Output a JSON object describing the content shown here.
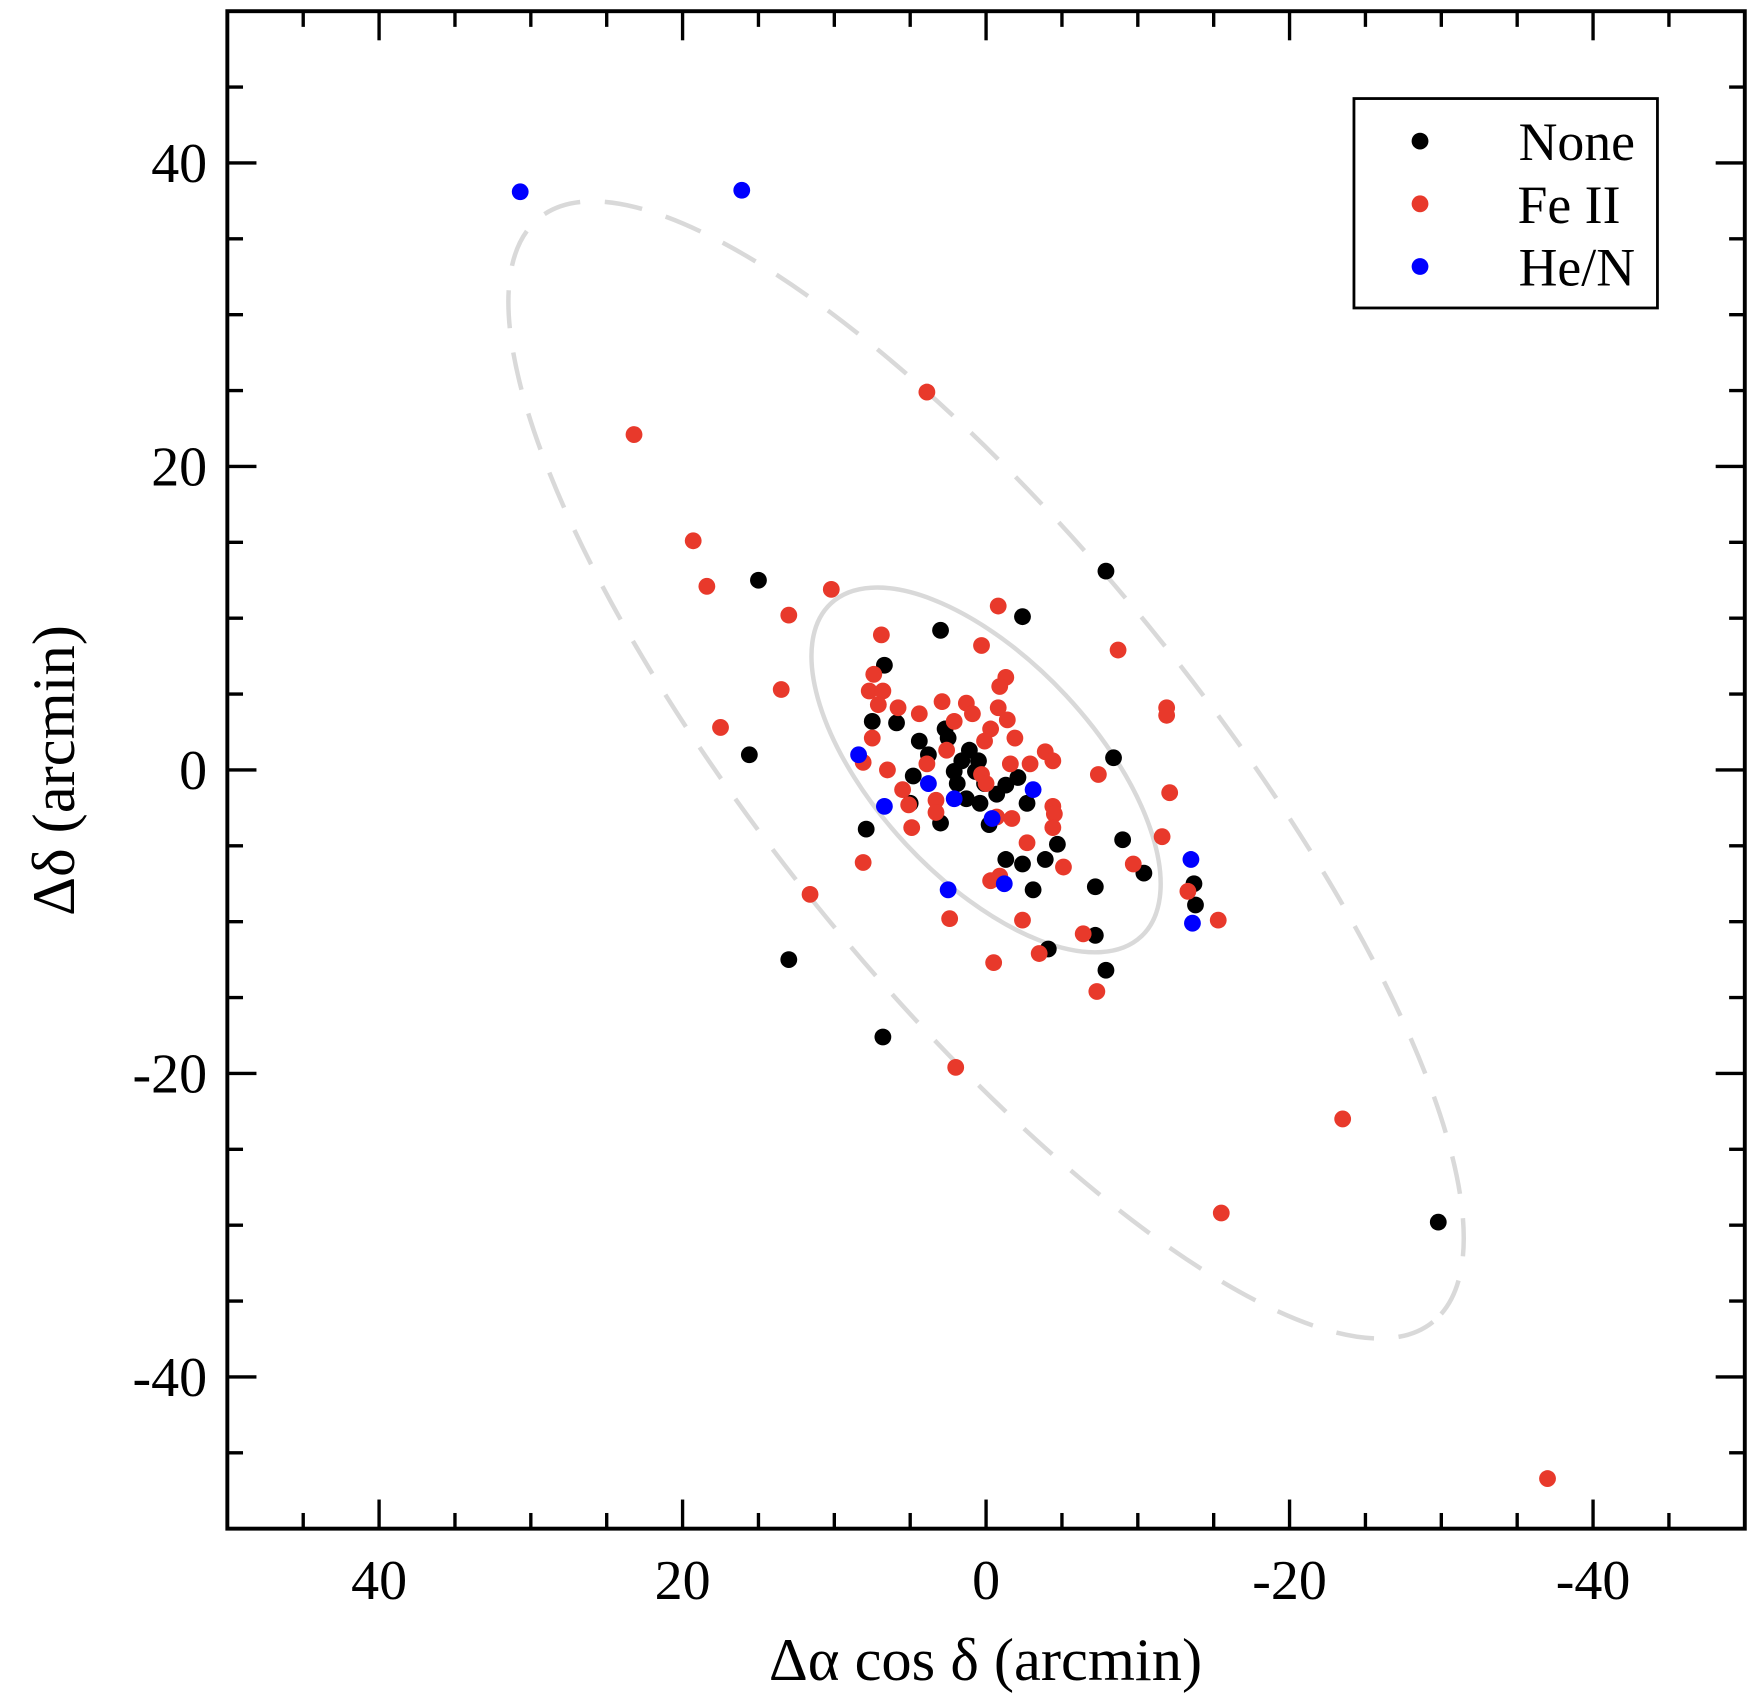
{
  "chart_data": {
    "type": "scatter",
    "title": "",
    "xlabel": "Δα cos δ  (arcmin)",
    "ylabel": "Δδ  (arcmin)",
    "xlim": [
      50,
      -50
    ],
    "ylim": [
      -50,
      50
    ],
    "x_inverted": true,
    "grid": false,
    "xticks": [
      40,
      20,
      0,
      -20,
      -40
    ],
    "xtick_labels": [
      "40",
      "20",
      "0",
      "-20",
      "-40"
    ],
    "yticks": [
      40,
      20,
      0,
      -20,
      -40
    ],
    "ytick_labels": [
      "40",
      "20",
      "0",
      "-20",
      "-40"
    ],
    "minor_tick_step": 5,
    "legend": {
      "placement": "top-right",
      "entries": [
        "None",
        "Fe II",
        "He/N"
      ]
    },
    "ellipses": [
      {
        "name": "outer",
        "style": "dashed",
        "color": "#d9d9d9",
        "center": [
          0,
          0
        ],
        "semi_major": 46.8,
        "semi_minor": 14.3,
        "angle_deg": 51
      },
      {
        "name": "inner",
        "style": "solid",
        "color": "#d9d9d9",
        "center": [
          0,
          0
        ],
        "semi_major": 15.0,
        "semi_minor": 7.2,
        "angle_deg": 47
      }
    ],
    "series": [
      {
        "name": "None",
        "color": "#000000",
        "points": [
          [
            15.0,
            12.5
          ],
          [
            -7.9,
            13.1
          ],
          [
            -2.4,
            10.1
          ],
          [
            3.0,
            9.2
          ],
          [
            6.7,
            6.9
          ],
          [
            7.5,
            3.2
          ],
          [
            5.9,
            3.1
          ],
          [
            15.6,
            1.0
          ],
          [
            -8.4,
            0.8
          ],
          [
            4.4,
            1.9
          ],
          [
            2.7,
            2.7
          ],
          [
            3.8,
            1.0
          ],
          [
            2.1,
            -0.1
          ],
          [
            1.3,
            -1.9
          ],
          [
            0.4,
            -2.2
          ],
          [
            -0.2,
            -3.6
          ],
          [
            3.0,
            -3.5
          ],
          [
            5.0,
            -2.2
          ],
          [
            4.8,
            -0.4
          ],
          [
            7.9,
            -3.9
          ],
          [
            -1.3,
            -1.0
          ],
          [
            -2.1,
            -0.5
          ],
          [
            -2.7,
            -2.2
          ],
          [
            -1.3,
            -5.9
          ],
          [
            -2.4,
            -6.2
          ],
          [
            -3.9,
            -5.9
          ],
          [
            -4.7,
            -4.9
          ],
          [
            -3.1,
            -7.9
          ],
          [
            -7.2,
            -7.7
          ],
          [
            -7.2,
            -10.9
          ],
          [
            -4.1,
            -11.8
          ],
          [
            -7.9,
            -13.2
          ],
          [
            -9.0,
            -4.6
          ],
          [
            -10.4,
            -6.8
          ],
          [
            -13.7,
            -7.5
          ],
          [
            -13.8,
            -8.9
          ],
          [
            13.0,
            -12.5
          ],
          [
            6.8,
            -17.6
          ],
          [
            -29.8,
            -29.8
          ],
          [
            1.1,
            1.3
          ],
          [
            1.6,
            0.6
          ],
          [
            0.7,
            -0.1
          ],
          [
            0.1,
            -0.9
          ],
          [
            -0.7,
            -1.6
          ],
          [
            2.5,
            2.1
          ],
          [
            1.9,
            -0.9
          ],
          [
            0.5,
            0.6
          ]
        ]
      },
      {
        "name": "Fe II",
        "color": "#e8392b",
        "points": [
          [
            3.9,
            24.9
          ],
          [
            23.2,
            22.1
          ],
          [
            19.3,
            15.1
          ],
          [
            18.4,
            12.1
          ],
          [
            10.2,
            11.9
          ],
          [
            13.0,
            10.2
          ],
          [
            -0.8,
            10.8
          ],
          [
            6.9,
            8.9
          ],
          [
            0.3,
            8.2
          ],
          [
            -8.7,
            7.9
          ],
          [
            13.5,
            5.3
          ],
          [
            17.5,
            2.8
          ],
          [
            7.4,
            6.3
          ],
          [
            7.7,
            5.2
          ],
          [
            6.8,
            5.2
          ],
          [
            7.1,
            4.3
          ],
          [
            5.8,
            4.1
          ],
          [
            4.4,
            3.7
          ],
          [
            2.9,
            4.5
          ],
          [
            1.3,
            4.4
          ],
          [
            -1.3,
            6.1
          ],
          [
            -0.9,
            5.5
          ],
          [
            -0.8,
            4.1
          ],
          [
            -1.4,
            3.3
          ],
          [
            -11.9,
            4.1
          ],
          [
            -11.9,
            3.6
          ],
          [
            2.1,
            3.2
          ],
          [
            0.9,
            3.7
          ],
          [
            -0.3,
            2.7
          ],
          [
            -1.9,
            2.1
          ],
          [
            -3.9,
            1.2
          ],
          [
            -4.4,
            0.6
          ],
          [
            -2.9,
            0.4
          ],
          [
            -1.6,
            0.4
          ],
          [
            0.1,
            1.9
          ],
          [
            2.6,
            1.3
          ],
          [
            7.5,
            2.1
          ],
          [
            8.1,
            0.5
          ],
          [
            6.5,
            0.0
          ],
          [
            3.9,
            0.4
          ],
          [
            0.3,
            -0.3
          ],
          [
            0.0,
            -0.9
          ],
          [
            -7.4,
            -0.3
          ],
          [
            -12.1,
            -1.5
          ],
          [
            5.5,
            -1.3
          ],
          [
            5.1,
            -2.3
          ],
          [
            3.3,
            -2.0
          ],
          [
            3.3,
            -2.8
          ],
          [
            4.9,
            -3.8
          ],
          [
            -0.7,
            -3.1
          ],
          [
            -1.7,
            -3.2
          ],
          [
            -4.4,
            -2.4
          ],
          [
            -4.5,
            -2.9
          ],
          [
            -4.4,
            -3.8
          ],
          [
            -2.7,
            -4.8
          ],
          [
            -11.6,
            -4.4
          ],
          [
            8.1,
            -6.1
          ],
          [
            -5.1,
            -6.4
          ],
          [
            -9.7,
            -6.2
          ],
          [
            -0.3,
            -7.3
          ],
          [
            -0.9,
            -7.0
          ],
          [
            11.6,
            -8.2
          ],
          [
            -13.3,
            -8.0
          ],
          [
            2.4,
            -9.8
          ],
          [
            -2.4,
            -9.9
          ],
          [
            -15.3,
            -9.9
          ],
          [
            -6.4,
            -10.8
          ],
          [
            -3.5,
            -12.1
          ],
          [
            -0.5,
            -12.7
          ],
          [
            -7.3,
            -14.6
          ],
          [
            2.0,
            -19.6
          ],
          [
            -23.5,
            -23.0
          ],
          [
            -15.5,
            -29.2
          ],
          [
            -37.0,
            -46.7
          ]
        ]
      },
      {
        "name": "He/N",
        "color": "#0000ff",
        "points": [
          [
            30.7,
            38.1
          ],
          [
            16.1,
            38.2
          ],
          [
            8.4,
            1.0
          ],
          [
            6.7,
            -2.4
          ],
          [
            3.8,
            -0.9
          ],
          [
            2.1,
            -1.9
          ],
          [
            -3.1,
            -1.3
          ],
          [
            -0.4,
            -3.2
          ],
          [
            -1.2,
            -7.5
          ],
          [
            2.5,
            -7.9
          ],
          [
            -13.5,
            -5.9
          ],
          [
            -13.6,
            -10.1
          ]
        ]
      }
    ]
  }
}
